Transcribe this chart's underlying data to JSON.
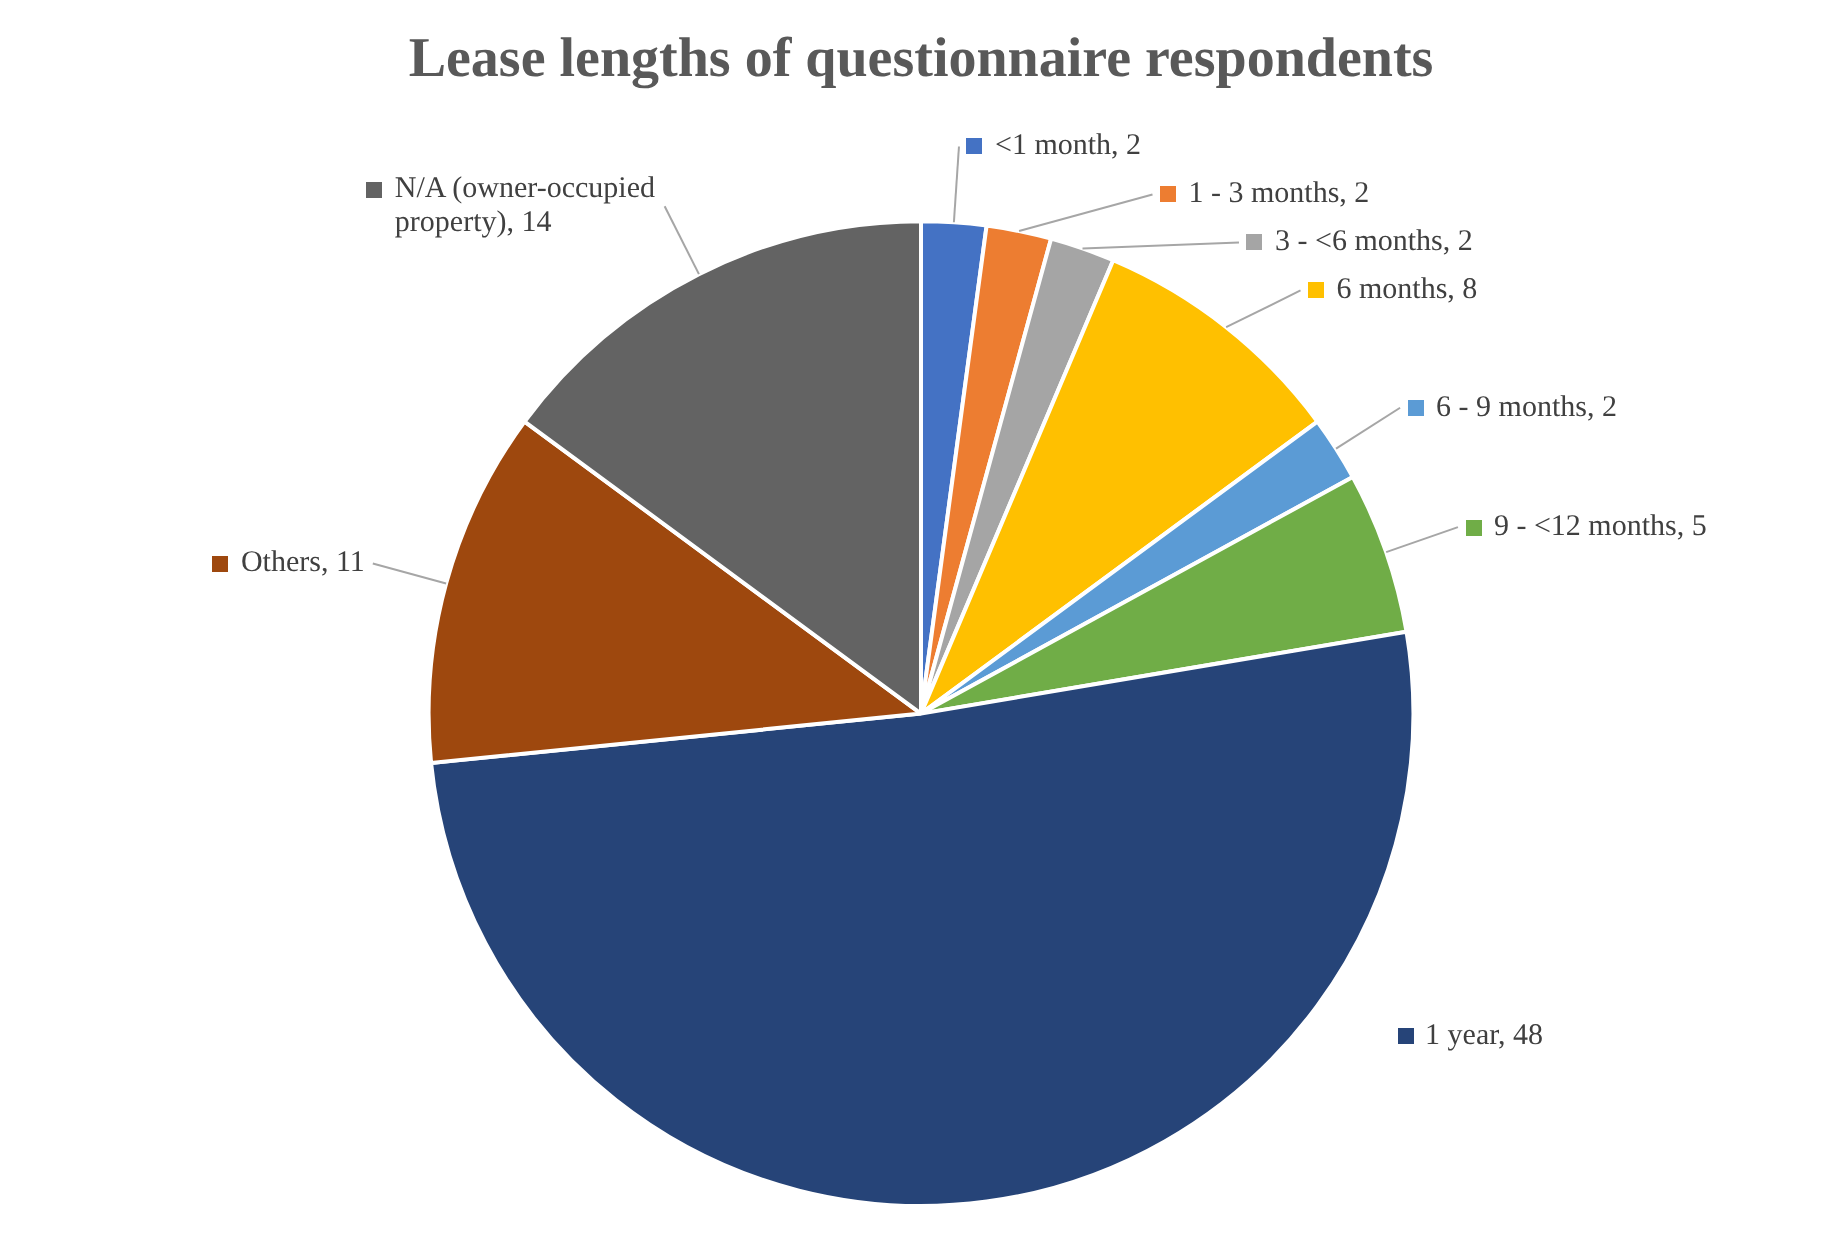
{
  "chart_data": {
    "type": "pie",
    "title": "Lease lengths of questionnaire respondents",
    "categories": [
      "<1 month, 2",
      "1 - 3 months, 2",
      "3 - <6 months, 2",
      "6 months, 8",
      "6 - 9 months, 2",
      "9 - <12 months, 5",
      "1 year, 48",
      "Others, 11",
      "N/A (owner-occupied property), 14"
    ],
    "values": [
      2,
      2,
      2,
      8,
      2,
      5,
      48,
      11,
      14
    ],
    "colors": [
      "#4472c4",
      "#ed7d31",
      "#a5a5a5",
      "#ffc000",
      "#5b9bd5",
      "#70ad47",
      "#264478",
      "#9e480e",
      "#636363"
    ],
    "legend": "right"
  }
}
